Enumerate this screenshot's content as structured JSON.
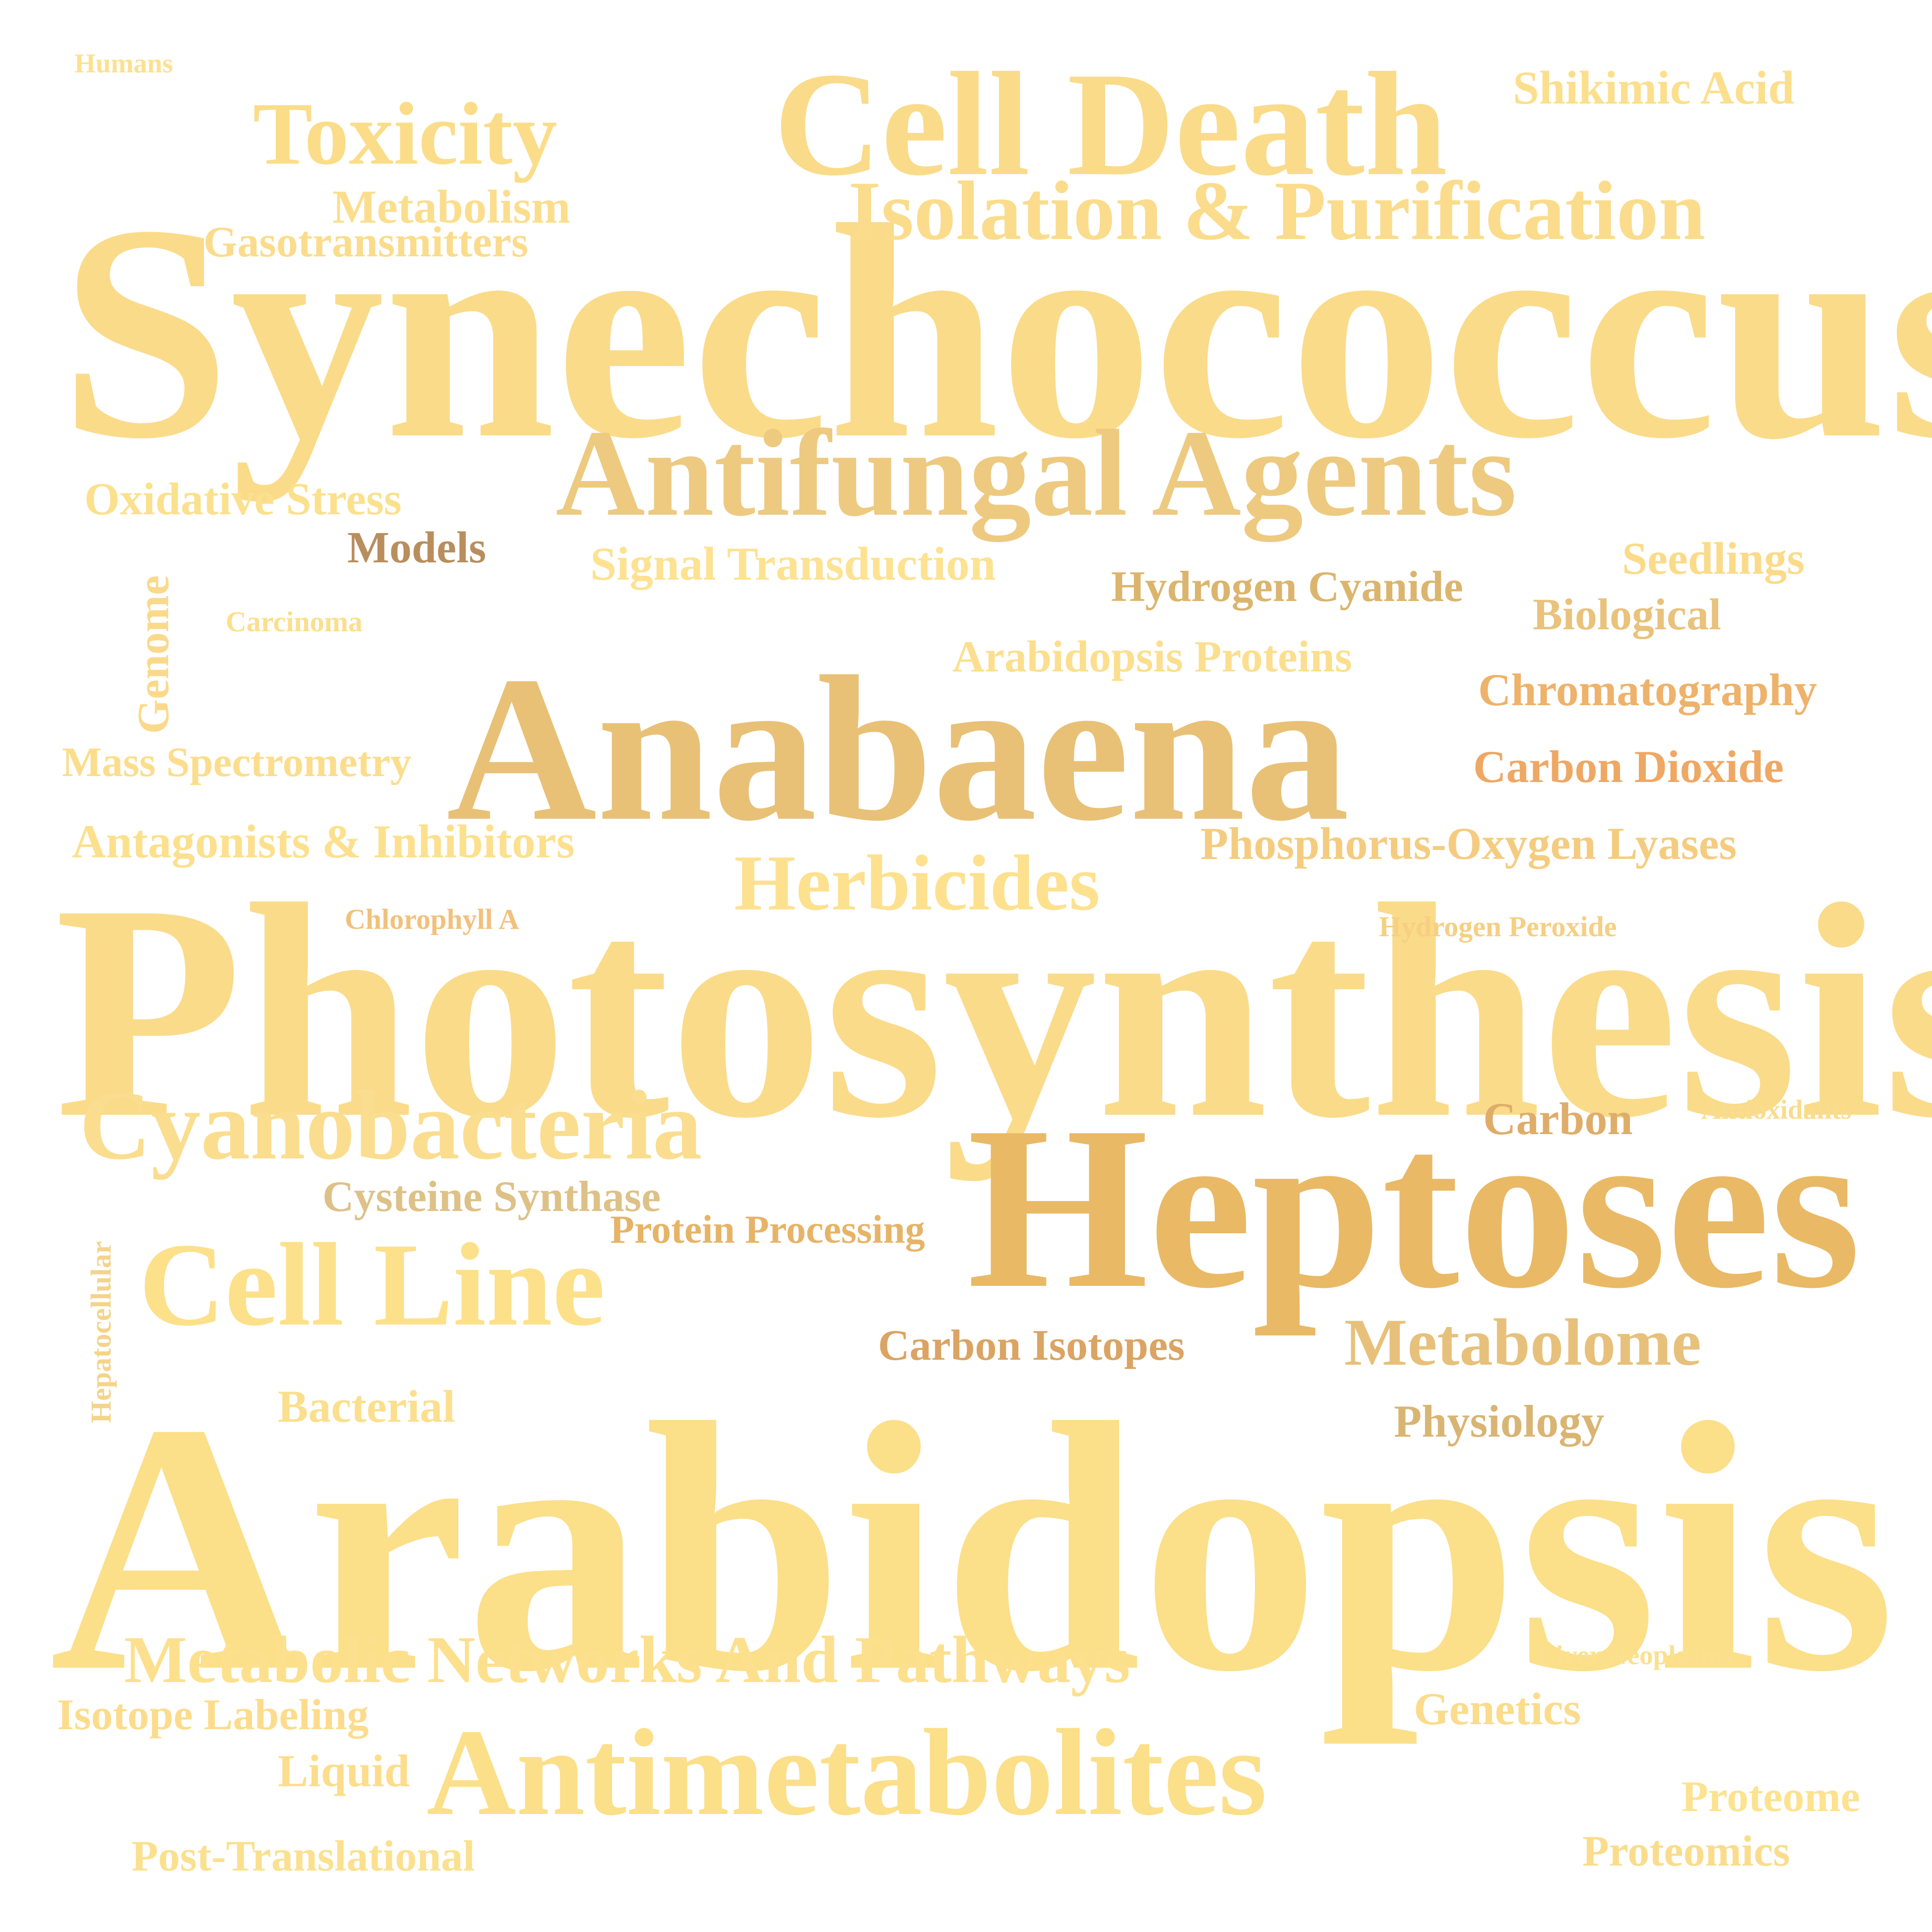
{
  "words": [
    {
      "key": "synechococcus",
      "text": "Synechococcus",
      "color": "#fadb8a"
    },
    {
      "key": "photosynthesis",
      "text": "Photosynthesis",
      "color": "#fadb8a"
    },
    {
      "key": "arabidopsis",
      "text": "Arabidopsis",
      "color": "#fbdf89"
    },
    {
      "key": "anabaena",
      "text": "Anabaena",
      "color": "#e8c177"
    },
    {
      "key": "heptoses",
      "text": "Heptoses",
      "color": "#e9b966"
    },
    {
      "key": "cell-death",
      "text": "Cell Death",
      "color": "#fadb8a"
    },
    {
      "key": "antifungal-agents",
      "text": "Antifungal Agents",
      "color": "#edca80"
    },
    {
      "key": "antimetabolites",
      "text": "Antimetabolites",
      "color": "#fbdf89"
    },
    {
      "key": "cell-line",
      "text": "Cell Line",
      "color": "#fde08a"
    },
    {
      "key": "cyanobacteria",
      "text": "Cyanobacteria",
      "color": "#fadd8e"
    },
    {
      "key": "isolation-purification",
      "text": "Isolation & Purification",
      "color": "#fadc8c"
    },
    {
      "key": "toxicity",
      "text": "Toxicity",
      "color": "#fbdd89"
    },
    {
      "key": "herbicides",
      "text": "Herbicides",
      "color": "#fde18f"
    },
    {
      "key": "metabolome",
      "text": "Metabolome",
      "color": "#e7c17b"
    },
    {
      "key": "metabolic-networks",
      "text": "Metabolic Networks And Pathways",
      "color": "#fde08e"
    },
    {
      "key": "shikimic-acid",
      "text": "Shikimic Acid",
      "color": "#fcdf8d"
    },
    {
      "key": "metabolism",
      "text": "Metabolism",
      "color": "#fbde8d"
    },
    {
      "key": "gasotransmitters",
      "text": "Gasotransmitters",
      "color": "#fadc8c"
    },
    {
      "key": "oxidative-stress",
      "text": "Oxidative Stress",
      "color": "#fbe18e"
    },
    {
      "key": "models",
      "text": "Models",
      "color": "#b98e5e"
    },
    {
      "key": "signal-transduction",
      "text": "Signal Transduction",
      "color": "#fde291"
    },
    {
      "key": "hydrogen-cyanide",
      "text": "Hydrogen Cyanide",
      "color": "#dbb56e"
    },
    {
      "key": "seedlings",
      "text": "Seedlings",
      "color": "#fbdb89"
    },
    {
      "key": "biological",
      "text": "Biological",
      "color": "#e9c27b"
    },
    {
      "key": "genome",
      "text": "Genome",
      "color": "#fbd98a"
    },
    {
      "key": "carcinoma",
      "text": "Carcinoma",
      "color": "#fbdf8d"
    },
    {
      "key": "arabidopsis-proteins",
      "text": "Arabidopsis Proteins",
      "color": "#fcdf8e"
    },
    {
      "key": "chromatography",
      "text": "Chromatography",
      "color": "#eeb26b"
    },
    {
      "key": "carbon-dioxide",
      "text": "Carbon Dioxide",
      "color": "#eea864"
    },
    {
      "key": "mass-spectrometry",
      "text": "Mass Spectrometry",
      "color": "#fcdd8c"
    },
    {
      "key": "antagonists-inhibitors",
      "text": "Antagonists & Inhibitors",
      "color": "#fce08d"
    },
    {
      "key": "phosphorus-oxygen-lyases",
      "text": "Phosphorus-Oxygen Lyases",
      "color": "#f5cc7f"
    },
    {
      "key": "chlorophyll-a",
      "text": "Chlorophyll A",
      "color": "#f1c17c"
    },
    {
      "key": "hydrogen-peroxide",
      "text": "Hydrogen Peroxide",
      "color": "#f6cf82"
    },
    {
      "key": "carbon",
      "text": "Carbon",
      "color": "#dfad6a"
    },
    {
      "key": "antioxidants",
      "text": "Antioxidants",
      "color": "#f9dc8d"
    },
    {
      "key": "cysteine-synthase",
      "text": "Cysteine Synthase",
      "color": "#ddc187"
    },
    {
      "key": "protein-processing",
      "text": "Protein Processing",
      "color": "#e6b467"
    },
    {
      "key": "hepatocellular",
      "text": "Hepatocellular",
      "color": "#f3d48a"
    },
    {
      "key": "carbon-isotopes",
      "text": "Carbon Isotopes",
      "color": "#dba463"
    },
    {
      "key": "bacterial",
      "text": "Bacterial",
      "color": "#fbdf8d"
    },
    {
      "key": "physiology",
      "text": "Physiology",
      "color": "#d9b574"
    },
    {
      "key": "liver-neoplasms",
      "text": "Liver Neoplasms",
      "color": "#fce08f"
    },
    {
      "key": "isotope-labeling",
      "text": "Isotope Labeling",
      "color": "#fcdc8c"
    },
    {
      "key": "genetics",
      "text": "Genetics",
      "color": "#fadc8c"
    },
    {
      "key": "liquid",
      "text": "Liquid",
      "color": "#fcdd8c"
    },
    {
      "key": "proteome",
      "text": "Proteome",
      "color": "#fde28f"
    },
    {
      "key": "post-translational",
      "text": "Post-Translational",
      "color": "#fbe08e"
    },
    {
      "key": "proteomics",
      "text": "Proteomics",
      "color": "#fadc8c"
    },
    {
      "key": "humans",
      "text": "Humans",
      "color": "#fce18e"
    }
  ]
}
